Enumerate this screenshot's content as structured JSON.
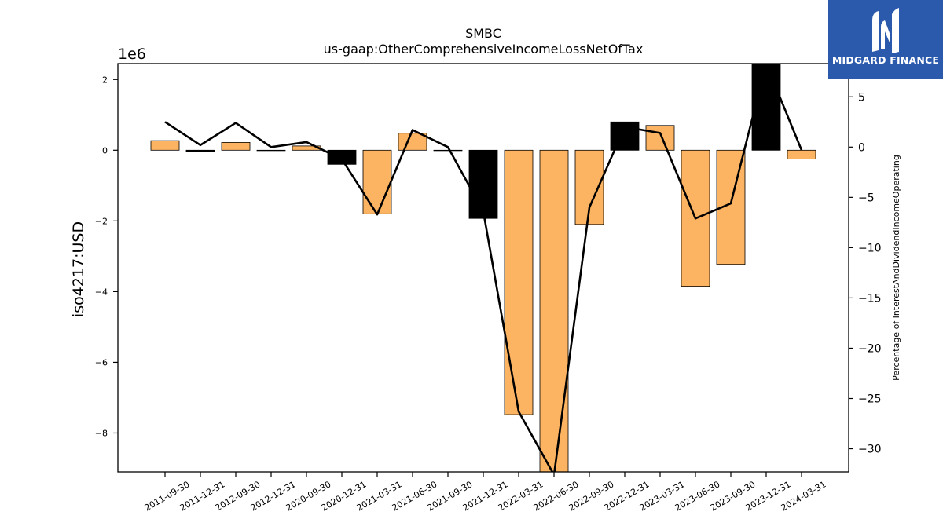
{
  "logo": {
    "text": "MIDGARD FINANCE",
    "icon": "midgard-logo-mark",
    "bg_color": "#2b5aad"
  },
  "chart_data": {
    "type": "bar",
    "title": "SMBC",
    "subtitle": "us-gaap:OtherComprehensiveIncomeLossNetOfTax",
    "ylabel": "iso4217:USD",
    "y2label": "Percentage of InterestAndDividendIncomeOperating",
    "y_offset_label": "1e6",
    "ylim": [
      -9.1,
      2.45
    ],
    "y_ticks": [
      2,
      0,
      -2,
      -4,
      -6,
      -8
    ],
    "y2lim": [
      -32.3,
      8.3
    ],
    "y2_ticks": [
      5,
      0,
      -5,
      -10,
      -15,
      -20,
      -25,
      -30
    ],
    "categories": [
      "2011-09-30",
      "2011-12-31",
      "2012-09-30",
      "2012-12-31",
      "2020-09-30",
      "2020-12-31",
      "2021-03-31",
      "2021-06-30",
      "2021-09-30",
      "2021-12-31",
      "2022-03-31",
      "2022-06-30",
      "2022-09-30",
      "2022-12-31",
      "2023-03-31",
      "2023-06-30",
      "2023-09-30",
      "2023-12-31",
      "2024-03-31"
    ],
    "series": [
      {
        "kind": "bar",
        "values": [
          0.27,
          -0.03,
          0.22,
          -0.01,
          0.12,
          -0.4,
          -1.8,
          0.48,
          -0.01,
          -1.93,
          -7.48,
          -9.3,
          -2.1,
          0.8,
          0.7,
          -3.85,
          -3.23,
          2.6,
          -0.25
        ],
        "colors": [
          "#fdb462",
          "#000000",
          "#fdb462",
          "#000000",
          "#fdb462",
          "#000000",
          "#fdb462",
          "#fdb462",
          "#000000",
          "#000000",
          "#fdb462",
          "#fdb462",
          "#fdb462",
          "#000000",
          "#fdb462",
          "#fdb462",
          "#fdb462",
          "#000000",
          "#fdb462"
        ]
      },
      {
        "kind": "line",
        "axis": "right",
        "color": "#000000",
        "values": [
          2.5,
          0.2,
          2.4,
          0.0,
          0.5,
          -1.2,
          -6.7,
          1.7,
          0.0,
          -6.4,
          -26.3,
          -32.6,
          -6.0,
          2.0,
          1.4,
          -7.1,
          -5.6,
          8.3,
          -0.3
        ]
      }
    ]
  }
}
